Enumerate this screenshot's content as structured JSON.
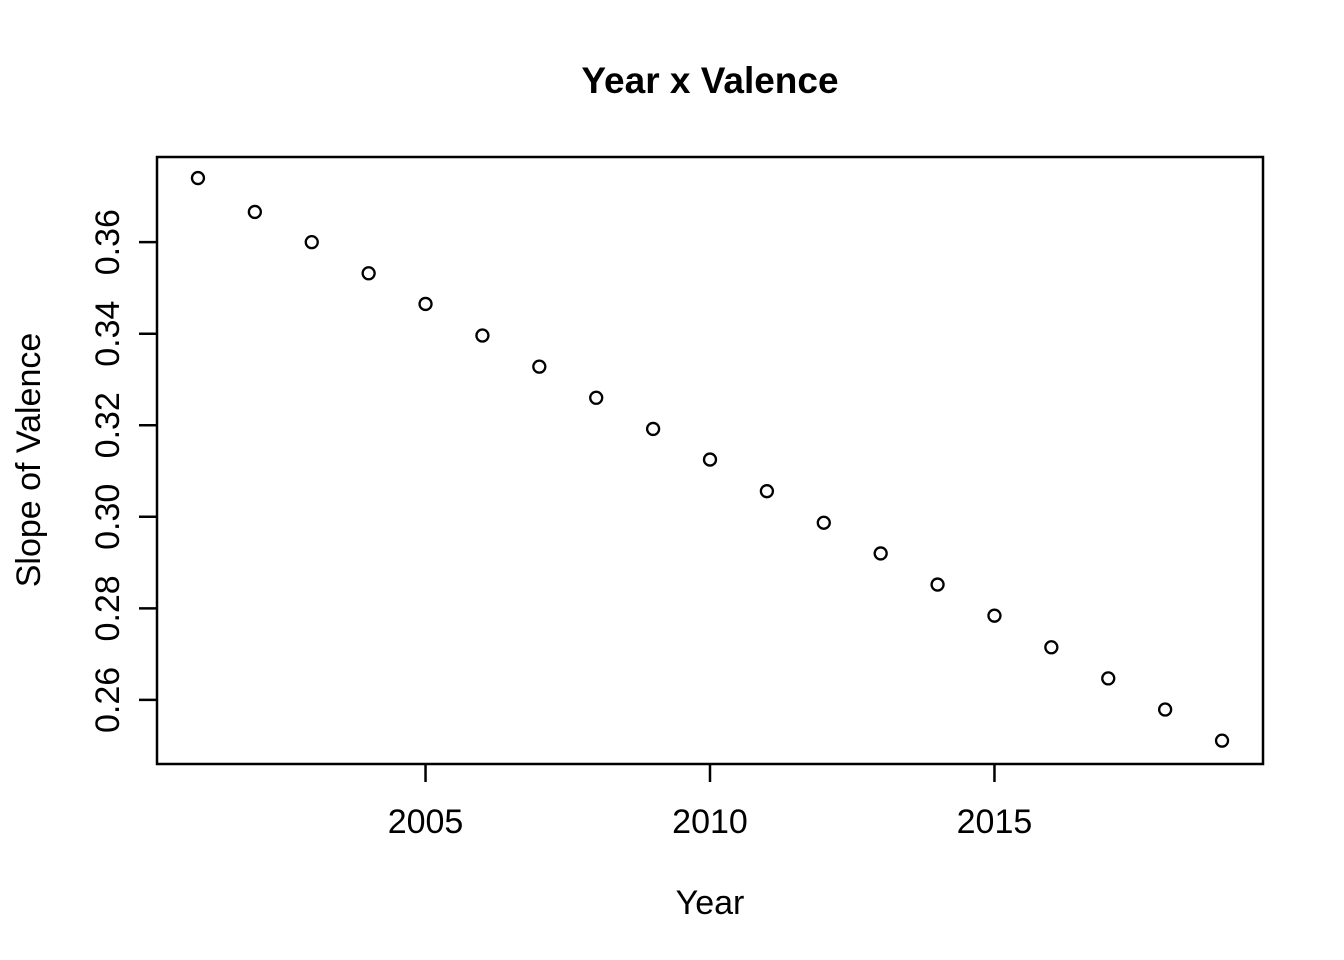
{
  "page": {
    "background": "#ffffff"
  },
  "chart_data": {
    "type": "scatter",
    "title": "Year x Valence",
    "xlabel": "Year",
    "ylabel": "Slope of Valence",
    "x": [
      2001,
      2002,
      2003,
      2004,
      2005,
      2006,
      2007,
      2008,
      2009,
      2010,
      2011,
      2012,
      2013,
      2014,
      2015,
      2016,
      2017,
      2018,
      2019
    ],
    "y": [
      0.374,
      0.3666,
      0.36,
      0.3532,
      0.3465,
      0.3396,
      0.3328,
      0.326,
      0.3192,
      0.3125,
      0.3056,
      0.2987,
      0.292,
      0.2852,
      0.2784,
      0.2715,
      0.2647,
      0.2579,
      0.2511
    ],
    "x_ticks": [
      2005,
      2010,
      2015
    ],
    "x_tick_labels": [
      "2005",
      "2010",
      "2015"
    ],
    "y_ticks": [
      0.26,
      0.28,
      0.3,
      0.32,
      0.34,
      0.36
    ],
    "y_tick_labels": [
      "0.26",
      "0.28",
      "0.30",
      "0.32",
      "0.34",
      "0.36"
    ],
    "xlim": [
      2000.28,
      2019.72
    ],
    "ylim": [
      0.246,
      0.3786
    ],
    "grid": false,
    "legend": null,
    "marker": "open-circle",
    "colors": {
      "point_stroke": "#000000",
      "point_fill": "#ffffff",
      "axis": "#000000",
      "text": "#000000",
      "background": "#ffffff"
    }
  }
}
